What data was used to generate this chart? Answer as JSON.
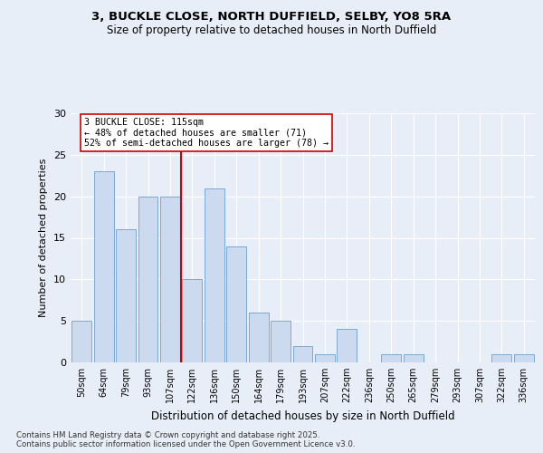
{
  "title1": "3, BUCKLE CLOSE, NORTH DUFFIELD, SELBY, YO8 5RA",
  "title2": "Size of property relative to detached houses in North Duffield",
  "xlabel": "Distribution of detached houses by size in North Duffield",
  "ylabel": "Number of detached properties",
  "categories": [
    "50sqm",
    "64sqm",
    "79sqm",
    "93sqm",
    "107sqm",
    "122sqm",
    "136sqm",
    "150sqm",
    "164sqm",
    "179sqm",
    "193sqm",
    "207sqm",
    "222sqm",
    "236sqm",
    "250sqm",
    "265sqm",
    "279sqm",
    "293sqm",
    "307sqm",
    "322sqm",
    "336sqm"
  ],
  "values": [
    5,
    23,
    16,
    20,
    20,
    10,
    21,
    14,
    6,
    5,
    2,
    1,
    4,
    0,
    1,
    1,
    0,
    0,
    0,
    1,
    1
  ],
  "bar_color": "#ccdaf0",
  "bar_edge_color": "#7aaad4",
  "vline_x": 4.5,
  "vline_color": "#cc0000",
  "annotation_text": "3 BUCKLE CLOSE: 115sqm\n← 48% of detached houses are smaller (71)\n52% of semi-detached houses are larger (78) →",
  "ylim": [
    0,
    30
  ],
  "yticks": [
    0,
    5,
    10,
    15,
    20,
    25,
    30
  ],
  "footer": "Contains HM Land Registry data © Crown copyright and database right 2025.\nContains public sector information licensed under the Open Government Licence v3.0.",
  "bg_color": "#e8eef8",
  "plot_bg_color": "#e8eef8"
}
